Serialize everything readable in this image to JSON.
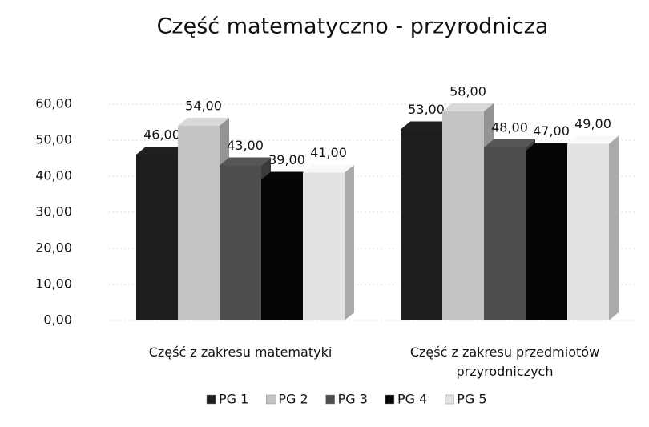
{
  "chart_data": {
    "type": "bar3d",
    "title": "Część matematyczno - przyrodnicza",
    "categories": [
      "Część z zakresu matematyki",
      "Część z zakresu przedmiotów przyrodniczych"
    ],
    "series": [
      {
        "name": "PG 1",
        "color": "#1e1e1e",
        "values": [
          46,
          53
        ],
        "value_labels": [
          "46,00",
          "53,00"
        ]
      },
      {
        "name": "PG 2",
        "color": "#c4c4c4",
        "values": [
          54,
          58
        ],
        "value_labels": [
          "54,00",
          "58,00"
        ]
      },
      {
        "name": "PG 3",
        "color": "#4e4e4e",
        "values": [
          43,
          48
        ],
        "value_labels": [
          "43,00",
          "48,00"
        ]
      },
      {
        "name": "PG 4",
        "color": "#050505",
        "values": [
          39,
          47
        ],
        "value_labels": [
          "39,00",
          "47,00"
        ]
      },
      {
        "name": "PG 5",
        "color": "#e2e2e2",
        "values": [
          41,
          49
        ],
        "value_labels": [
          "41,00",
          "49,00"
        ]
      }
    ],
    "ylim": [
      0,
      60
    ],
    "yticks": [
      {
        "value": 0,
        "label": "0,00"
      },
      {
        "value": 10,
        "label": "10,00"
      },
      {
        "value": 20,
        "label": "20,00"
      },
      {
        "value": 30,
        "label": "30,00"
      },
      {
        "value": 40,
        "label": "40,00"
      },
      {
        "value": 50,
        "label": "50,00"
      },
      {
        "value": 60,
        "label": "60,00"
      }
    ],
    "legend": "bottom"
  }
}
